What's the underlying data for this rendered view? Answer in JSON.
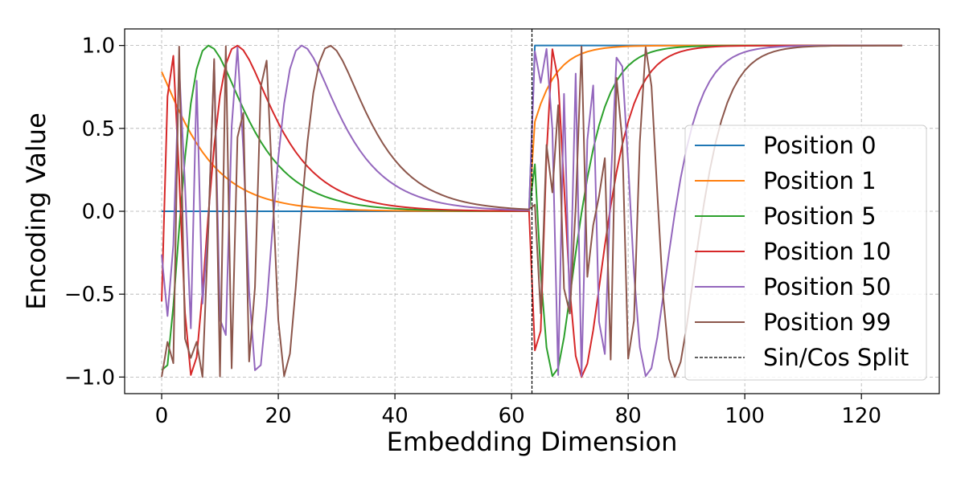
{
  "chart_data": {
    "type": "line",
    "title": "",
    "xlabel": "Embedding Dimension",
    "ylabel": "Encoding Value",
    "xlim": [
      -6.35,
      133.35
    ],
    "ylim": [
      -1.1,
      1.1
    ],
    "x_ticks": [
      0,
      20,
      40,
      60,
      80,
      100,
      120
    ],
    "x_tick_labels": [
      "0",
      "20",
      "40",
      "60",
      "80",
      "100",
      "120"
    ],
    "y_ticks": [
      -1.0,
      -0.5,
      0.0,
      0.5,
      1.0
    ],
    "y_tick_labels": [
      "−1.0",
      "−0.5",
      "0.0",
      "0.5",
      "1.0"
    ],
    "grid": true,
    "legend_placement": "center-right",
    "d_model": 128,
    "series": [
      {
        "name": "Position 0",
        "position": 0,
        "color": "#1f77b4"
      },
      {
        "name": "Position 1",
        "position": 1,
        "color": "#ff7f0e"
      },
      {
        "name": "Position 5",
        "position": 5,
        "color": "#2ca02c"
      },
      {
        "name": "Position 10",
        "position": 10,
        "color": "#d62728"
      },
      {
        "name": "Position 50",
        "position": 50,
        "color": "#9467bd"
      },
      {
        "name": "Position 99",
        "position": 99,
        "color": "#8c564b"
      }
    ],
    "split_line": {
      "name": "Sin/Cos Split",
      "x": 63.5,
      "color": "#000000"
    }
  }
}
